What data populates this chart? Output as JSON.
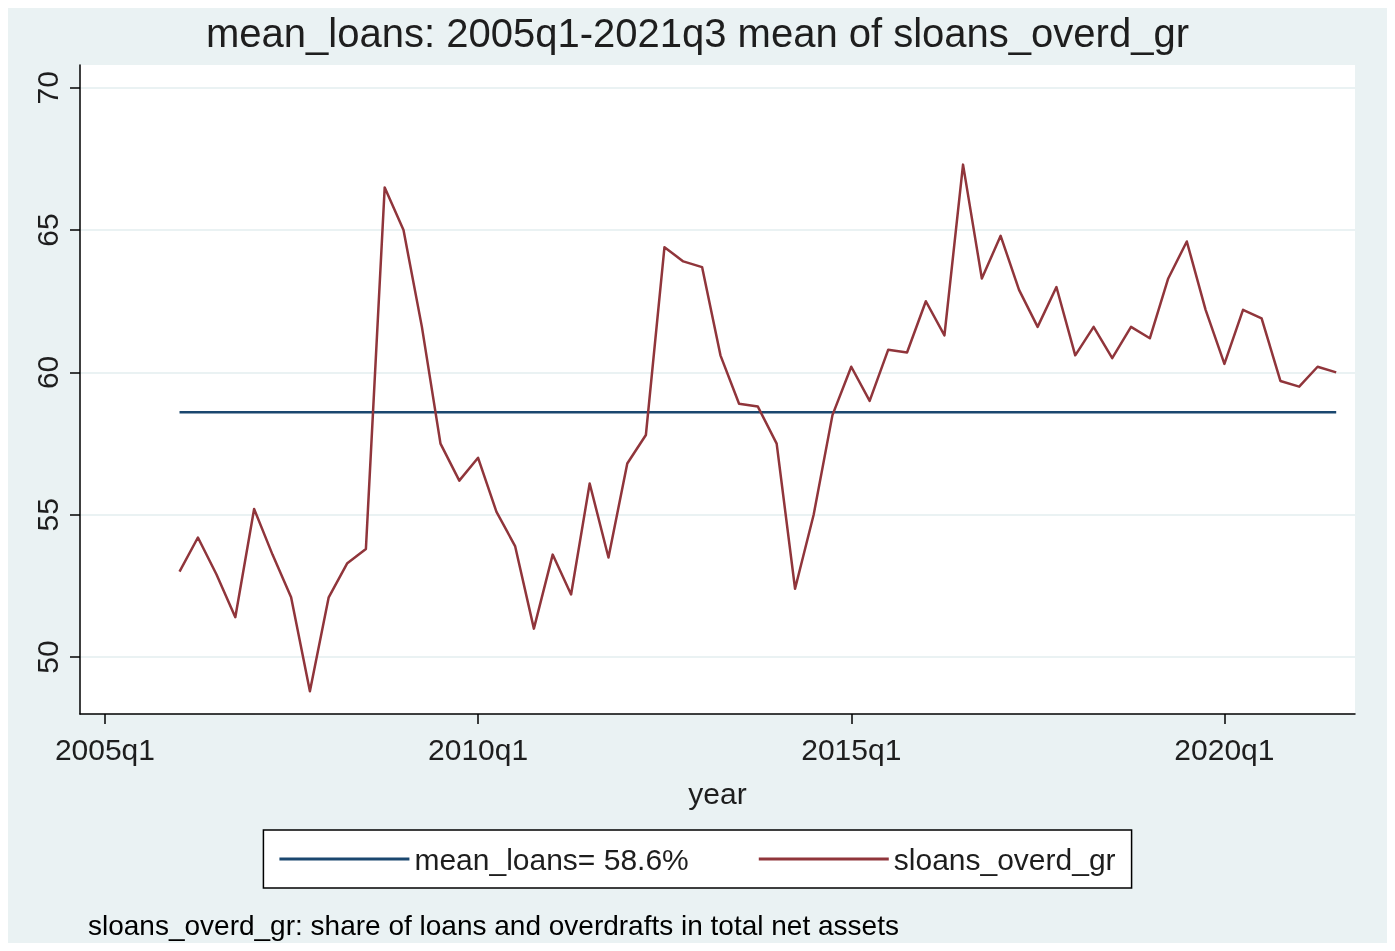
{
  "chart_data": {
    "type": "line",
    "title": "mean_loans: 2005q1-2021q3 mean of sloans_overd_gr",
    "xlabel": "year",
    "annotations": [
      "sloans_overd_gr: share of loans and overdrafts in total net assets"
    ],
    "x": [
      "2006-01",
      "2006-04",
      "2006-07",
      "2006-10",
      "2007-01",
      "2007-04",
      "2007-07",
      "2007-10",
      "2008-01",
      "2008-04",
      "2008-07",
      "2008-10",
      "2009-01",
      "2009-04",
      "2009-07",
      "2009-10",
      "2010-01",
      "2010-04",
      "2010-07",
      "2010-10",
      "2011-01",
      "2011-04",
      "2011-07",
      "2011-10",
      "2012-01",
      "2012-04",
      "2012-07",
      "2012-10",
      "2013-01",
      "2013-04",
      "2013-07",
      "2013-10",
      "2014-01",
      "2014-04",
      "2014-07",
      "2014-10",
      "2015-01",
      "2015-04",
      "2015-07",
      "2015-10",
      "2016-01",
      "2016-04",
      "2016-07",
      "2016-10",
      "2017-01",
      "2017-04",
      "2017-07",
      "2017-10",
      "2018-01",
      "2018-04",
      "2018-07",
      "2018-10",
      "2019-01",
      "2019-04",
      "2019-07",
      "2019-10",
      "2020-01",
      "2020-04",
      "2020-07",
      "2020-10",
      "2021-01",
      "2021-04",
      "2021-07"
    ],
    "series": [
      {
        "name": "mean_loans= 58.6%",
        "color": "#1a476f",
        "x": [
          "2006-01",
          "2021-07"
        ],
        "values": [
          58.6,
          58.6
        ]
      },
      {
        "name": "sloans_overd_gr",
        "color": "#90353b",
        "values": [
          53.0,
          54.2,
          52.9,
          51.4,
          55.2,
          53.6,
          52.1,
          48.8,
          52.1,
          53.3,
          53.8,
          66.5,
          65.0,
          61.6,
          57.5,
          56.2,
          57.0,
          55.1,
          53.9,
          51.0,
          53.6,
          52.2,
          56.1,
          53.5,
          56.8,
          57.8,
          64.4,
          63.9,
          63.7,
          60.6,
          58.9,
          58.8,
          57.5,
          52.4,
          55.0,
          58.5,
          60.2,
          59.0,
          60.8,
          60.7,
          62.5,
          61.3,
          67.3,
          63.3,
          64.8,
          62.9,
          61.6,
          63.0,
          60.6,
          61.6,
          60.5,
          61.6,
          61.2,
          63.3,
          64.6,
          62.2,
          60.3,
          62.2,
          61.9,
          59.7,
          59.5,
          60.2,
          60.0
        ]
      }
    ],
    "xlim": [
      "2004-09",
      "2021-10"
    ],
    "xticks": [
      {
        "value": "2005-01",
        "label": "2005q1"
      },
      {
        "value": "2010-01",
        "label": "2010q1"
      },
      {
        "value": "2015-01",
        "label": "2015q1"
      },
      {
        "value": "2020-01",
        "label": "2020q1"
      }
    ],
    "ylim": [
      48,
      70.8
    ],
    "yticks": [
      50,
      55,
      60,
      65,
      70
    ],
    "grid": "y",
    "legend": "bottom",
    "marker": "none",
    "line_style": "solid"
  }
}
